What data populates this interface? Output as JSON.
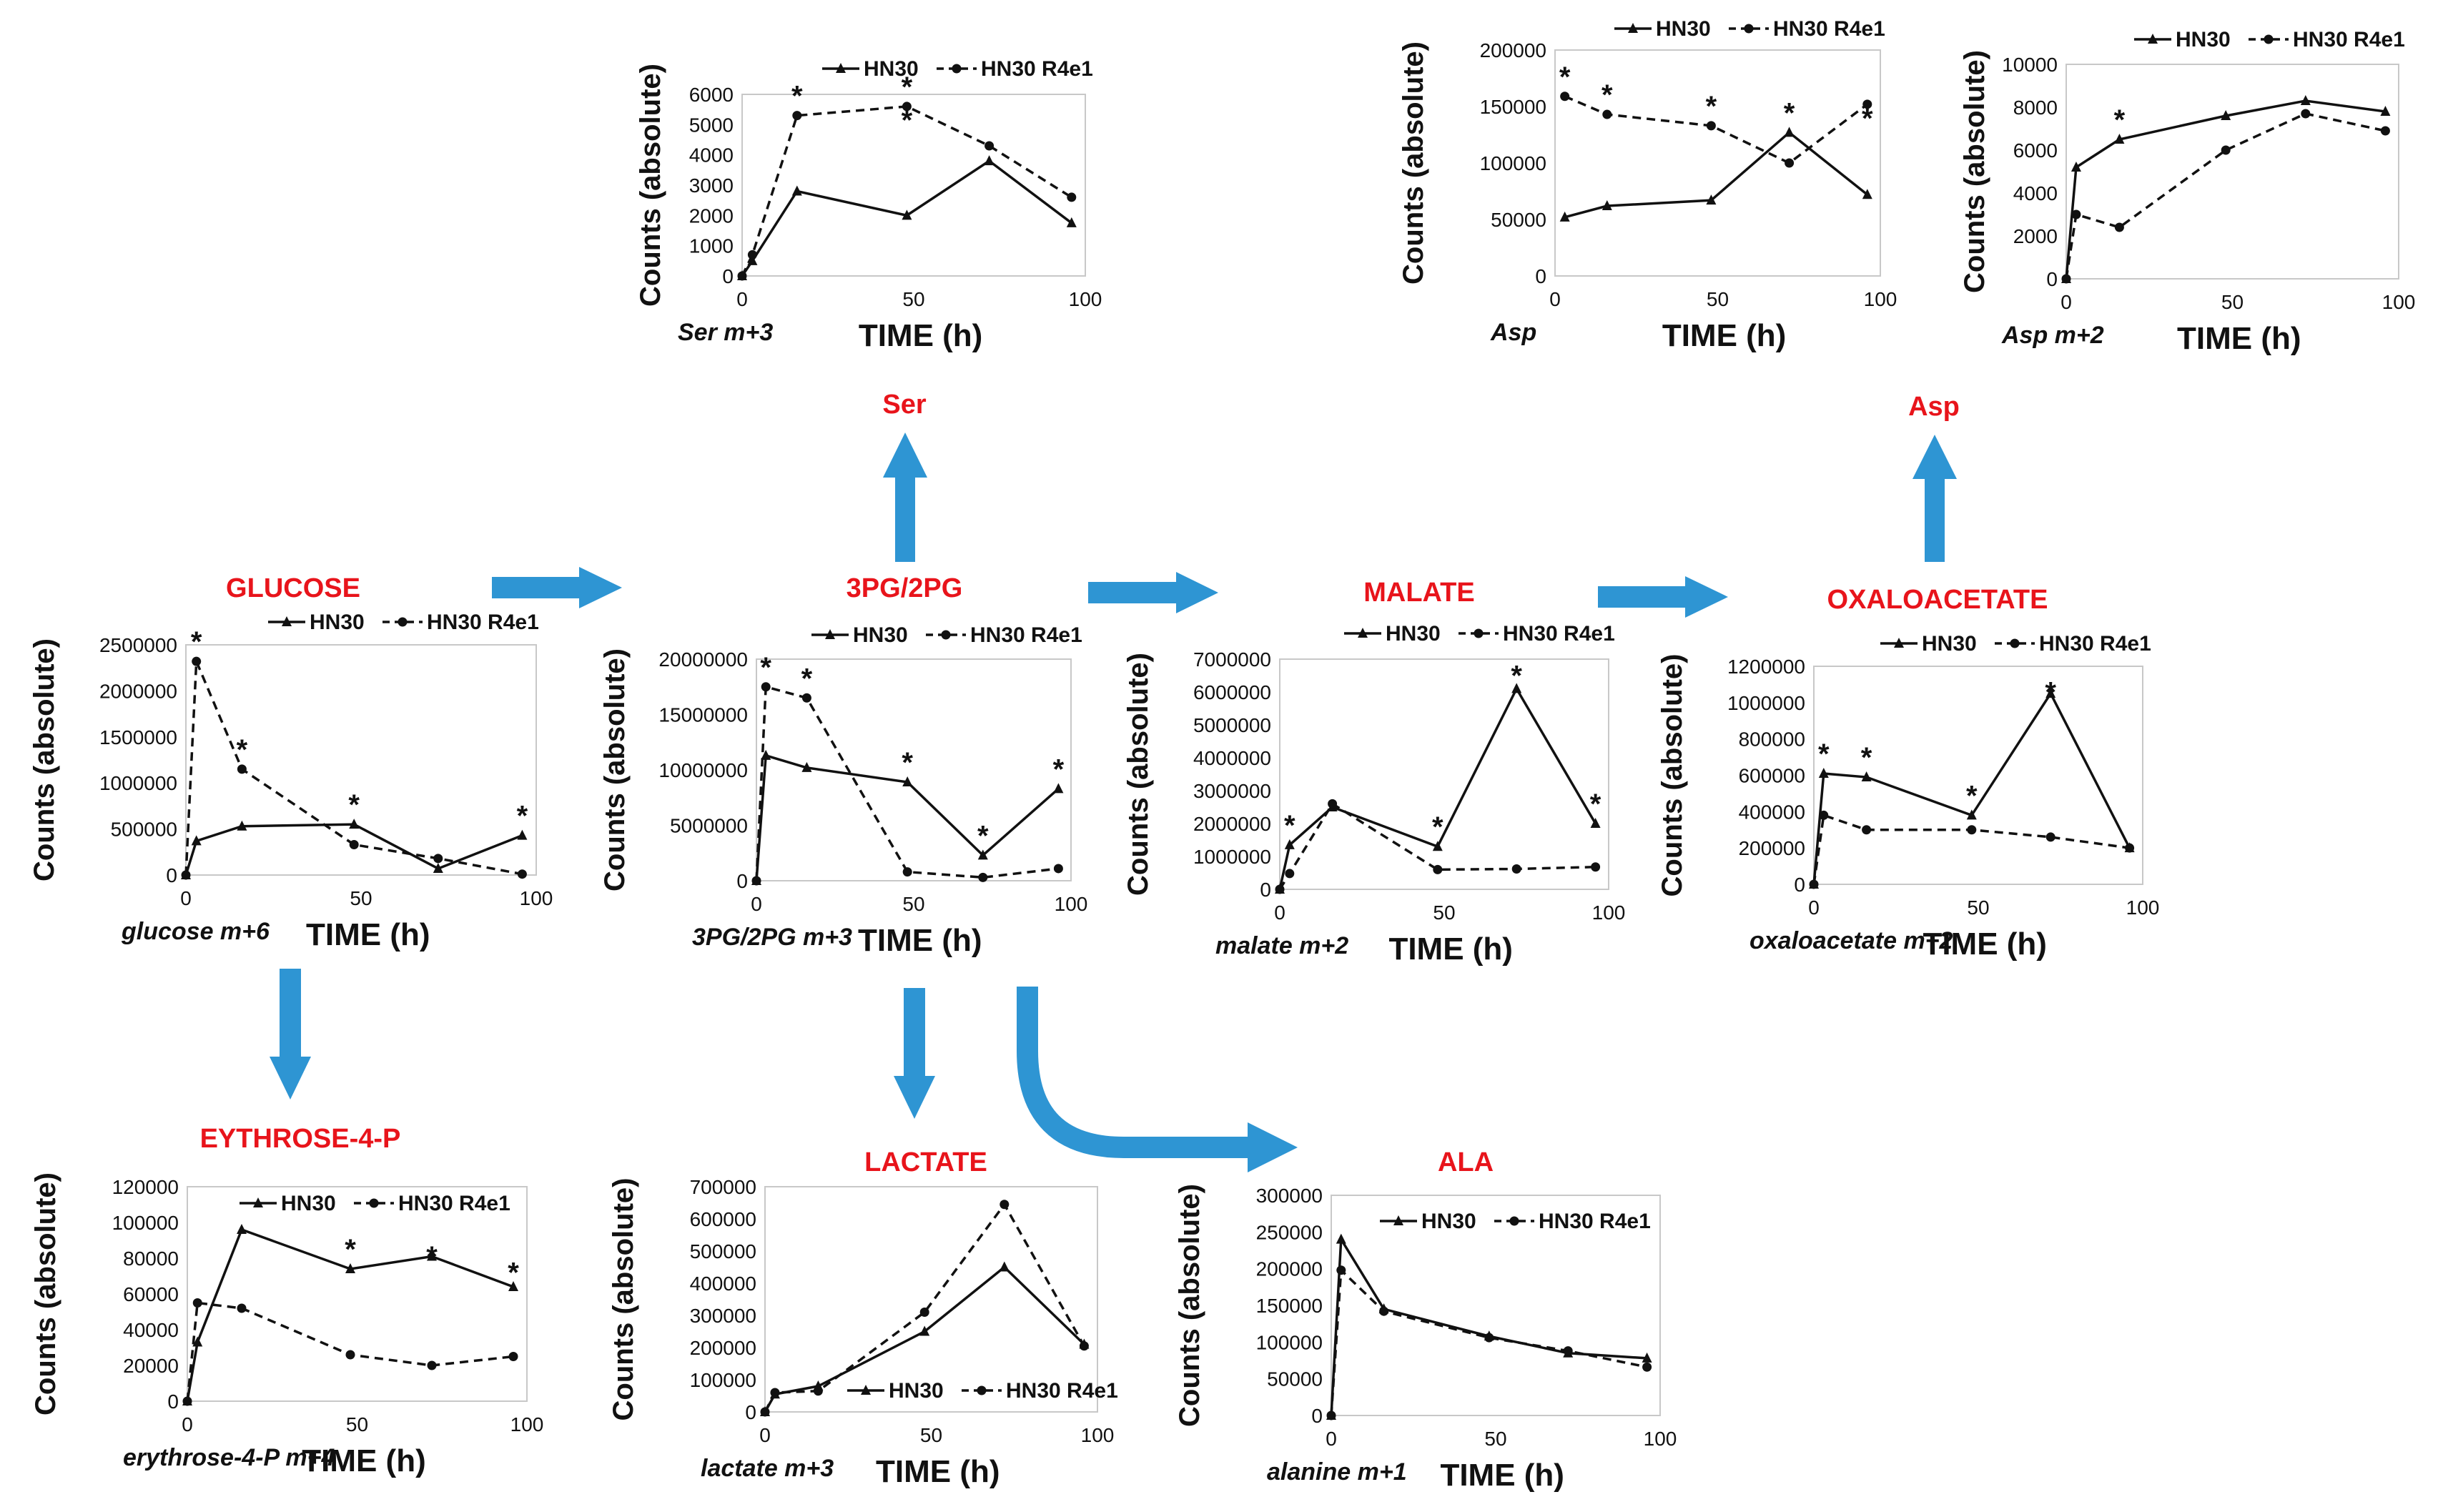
{
  "metabolites": {
    "ser": "Ser",
    "asp": "Asp",
    "glucose": "GLUCOSE",
    "pg": "3PG/2PG",
    "malate": "MALATE",
    "oxaloacetate": "OXALOACETATE",
    "erythrose": "EYTHROSE-4-P",
    "lactate": "LACTATE",
    "ala": "ALA"
  },
  "colors": {
    "metabolite_label": "#e8141b",
    "arrow": "#2e95d3",
    "line": "#111111"
  },
  "legend": {
    "series1": "HN30",
    "series2": "HN30 R4e1"
  },
  "chart_data": [
    {
      "id": "ser",
      "type": "line",
      "label": "Ser m+3",
      "xlabel": "TIME (h)",
      "ylabel": "Counts (absolute)",
      "xlim": [
        0,
        100
      ],
      "ylim": [
        0,
        6000
      ],
      "xticks": [
        0,
        50,
        100
      ],
      "yticks": [
        0,
        1000,
        2000,
        3000,
        4000,
        5000,
        6000
      ],
      "ytick_labels": [
        "0",
        "1000",
        "2000",
        "3000",
        "4000",
        "5000",
        "6000"
      ],
      "x": [
        0,
        3,
        16,
        48,
        72,
        96
      ],
      "series": [
        {
          "name": "HN30",
          "values": [
            0,
            500,
            2800,
            2000,
            3800,
            1750
          ]
        },
        {
          "name": "HN30 R4e1",
          "values": [
            0,
            700,
            5300,
            5600,
            4300,
            2600
          ]
        }
      ],
      "asterisks": [
        {
          "x": 16,
          "y": 5300
        },
        {
          "x": 48,
          "y": 5600
        },
        {
          "x": 48,
          "y": 4500
        }
      ]
    },
    {
      "id": "asp",
      "type": "line",
      "label": "Asp",
      "xlabel": "TIME (h)",
      "ylabel": "Counts (absolute)",
      "xlim": [
        0,
        100
      ],
      "ylim": [
        0,
        200000
      ],
      "xticks": [
        0,
        50,
        100
      ],
      "yticks": [
        0,
        50000,
        100000,
        150000,
        200000
      ],
      "ytick_labels": [
        "0",
        "50000",
        "100000",
        "150000",
        "200000"
      ],
      "x": [
        3,
        16,
        48,
        72,
        96
      ],
      "series": [
        {
          "name": "HN30",
          "values": [
            52000,
            62000,
            67000,
            127000,
            72000
          ]
        },
        {
          "name": "HN30 R4e1",
          "values": [
            159000,
            143000,
            133000,
            100000,
            152000
          ]
        }
      ],
      "asterisks": [
        {
          "x": 3,
          "y": 159000
        },
        {
          "x": 16,
          "y": 143000
        },
        {
          "x": 48,
          "y": 133000
        },
        {
          "x": 72,
          "y": 127000
        },
        {
          "x": 96,
          "y": 122000
        }
      ]
    },
    {
      "id": "asp2",
      "type": "line",
      "label": "Asp m+2",
      "xlabel": "TIME (h)",
      "ylabel": "Counts (absolute)",
      "xlim": [
        0,
        100
      ],
      "ylim": [
        0,
        10000
      ],
      "xticks": [
        0,
        50,
        100
      ],
      "yticks": [
        0,
        2000,
        4000,
        6000,
        8000,
        10000
      ],
      "ytick_labels": [
        "0",
        "2000",
        "4000",
        "6000",
        "8000",
        "10000"
      ],
      "x": [
        0,
        3,
        16,
        48,
        72,
        96
      ],
      "series": [
        {
          "name": "HN30",
          "values": [
            0,
            5200,
            6500,
            7600,
            8300,
            7800
          ]
        },
        {
          "name": "HN30 R4e1",
          "values": [
            0,
            3000,
            2400,
            6000,
            7700,
            6900
          ]
        }
      ],
      "asterisks": [
        {
          "x": 16,
          "y": 6500
        }
      ]
    },
    {
      "id": "glucose",
      "type": "line",
      "label": "glucose m+6",
      "xlabel": "TIME (h)",
      "ylabel": "Counts (absolute)",
      "xlim": [
        0,
        100
      ],
      "ylim": [
        0,
        2500000
      ],
      "xticks": [
        0,
        50,
        100
      ],
      "yticks": [
        0,
        500000,
        1000000,
        1500000,
        2000000,
        2500000
      ],
      "ytick_labels": [
        "0",
        "500000",
        "1000000",
        "1500000",
        "2000000",
        "2500000"
      ],
      "x": [
        0,
        3,
        16,
        48,
        72,
        96
      ],
      "series": [
        {
          "name": "HN30",
          "values": [
            0,
            370000,
            530000,
            550000,
            70000,
            430000
          ]
        },
        {
          "name": "HN30 R4e1",
          "values": [
            0,
            2320000,
            1150000,
            330000,
            180000,
            10000
          ]
        }
      ],
      "asterisks": [
        {
          "x": 3,
          "y": 2320000
        },
        {
          "x": 16,
          "y": 1150000
        },
        {
          "x": 48,
          "y": 550000
        },
        {
          "x": 96,
          "y": 430000
        }
      ]
    },
    {
      "id": "pg",
      "type": "line",
      "label": "3PG/2PG m+3",
      "xlabel": "TIME (h)",
      "ylabel": "Counts (absolute)",
      "xlim": [
        0,
        100
      ],
      "ylim": [
        0,
        20000000
      ],
      "xticks": [
        0,
        50,
        100
      ],
      "yticks": [
        0,
        5000000,
        10000000,
        15000000,
        20000000
      ],
      "ytick_labels": [
        "0",
        "5000000",
        "10000000",
        "15000000",
        "20000000"
      ],
      "x": [
        0,
        3,
        16,
        48,
        72,
        96
      ],
      "series": [
        {
          "name": "HN30",
          "values": [
            0,
            11300000,
            10200000,
            8900000,
            2300000,
            8300000
          ]
        },
        {
          "name": "HN30 R4e1",
          "values": [
            0,
            17500000,
            16500000,
            800000,
            300000,
            1100000
          ]
        }
      ],
      "asterisks": [
        {
          "x": 3,
          "y": 17500000
        },
        {
          "x": 16,
          "y": 16500000
        },
        {
          "x": 48,
          "y": 8900000
        },
        {
          "x": 72,
          "y": 2300000
        },
        {
          "x": 96,
          "y": 8300000
        }
      ]
    },
    {
      "id": "malate",
      "type": "line",
      "label": "malate m+2",
      "xlabel": "TIME (h)",
      "ylabel": "Counts (absolute)",
      "xlim": [
        0,
        100
      ],
      "ylim": [
        0,
        7000000
      ],
      "xticks": [
        0,
        50,
        100
      ],
      "yticks": [
        0,
        1000000,
        2000000,
        3000000,
        4000000,
        5000000,
        6000000,
        7000000
      ],
      "ytick_labels": [
        "0",
        "1000000",
        "2000000",
        "3000000",
        "4000000",
        "5000000",
        "6000000",
        "7000000"
      ],
      "x": [
        0,
        3,
        16,
        48,
        72,
        96
      ],
      "series": [
        {
          "name": "HN30",
          "values": [
            0,
            1350000,
            2500000,
            1300000,
            6100000,
            2000000
          ]
        },
        {
          "name": "HN30 R4e1",
          "values": [
            0,
            480000,
            2600000,
            600000,
            620000,
            680000
          ]
        }
      ],
      "asterisks": [
        {
          "x": 3,
          "y": 1350000
        },
        {
          "x": 48,
          "y": 1300000
        },
        {
          "x": 72,
          "y": 5900000
        },
        {
          "x": 96,
          "y": 2000000
        }
      ]
    },
    {
      "id": "oxaloacetate",
      "type": "line",
      "label": "oxaloacetate m+2",
      "xlabel": "TIME (h)",
      "ylabel": "Counts (absolute)",
      "xlim": [
        0,
        100
      ],
      "ylim": [
        0,
        1200000
      ],
      "xticks": [
        0,
        50,
        100
      ],
      "yticks": [
        0,
        200000,
        400000,
        600000,
        800000,
        1000000,
        1200000
      ],
      "ytick_labels": [
        "0",
        "200000",
        "400000",
        "600000",
        "800000",
        "1000000",
        "1200000"
      ],
      "x": [
        0,
        3,
        16,
        48,
        72,
        96
      ],
      "series": [
        {
          "name": "HN30",
          "values": [
            0,
            610000,
            590000,
            380000,
            1050000,
            200000
          ]
        },
        {
          "name": "HN30 R4e1",
          "values": [
            0,
            380000,
            300000,
            300000,
            260000,
            200000
          ]
        }
      ],
      "asterisks": [
        {
          "x": 3,
          "y": 610000
        },
        {
          "x": 16,
          "y": 590000
        },
        {
          "x": 48,
          "y": 380000
        },
        {
          "x": 72,
          "y": 950000
        }
      ]
    },
    {
      "id": "erythrose",
      "type": "line",
      "label": "erythrose-4-P m+4",
      "xlabel": "TIME (h)",
      "ylabel": "Counts (absolute)",
      "xlim": [
        0,
        100
      ],
      "ylim": [
        0,
        120000
      ],
      "xticks": [
        0,
        50,
        100
      ],
      "yticks": [
        0,
        20000,
        40000,
        60000,
        80000,
        100000,
        120000
      ],
      "ytick_labels": [
        "0",
        "20000",
        "40000",
        "60000",
        "80000",
        "100000",
        "120000"
      ],
      "x": [
        0,
        3,
        16,
        48,
        72,
        96
      ],
      "series": [
        {
          "name": "HN30",
          "values": [
            0,
            33000,
            96000,
            74000,
            81000,
            64000
          ]
        },
        {
          "name": "HN30 R4e1",
          "values": [
            0,
            55000,
            52000,
            26000,
            20000,
            25000
          ]
        }
      ],
      "asterisks": [
        {
          "x": 48,
          "y": 74000
        },
        {
          "x": 72,
          "y": 70000
        },
        {
          "x": 96,
          "y": 61000
        }
      ]
    },
    {
      "id": "lactate",
      "type": "line",
      "label": "lactate m+3",
      "xlabel": "TIME (h)",
      "ylabel": "Counts (absolute)",
      "xlim": [
        0,
        100
      ],
      "ylim": [
        0,
        700000
      ],
      "xticks": [
        0,
        50,
        100
      ],
      "yticks": [
        0,
        100000,
        200000,
        300000,
        400000,
        500000,
        600000,
        700000
      ],
      "ytick_labels": [
        "0",
        "100000",
        "200000",
        "300000",
        "400000",
        "500000",
        "600000",
        "700000"
      ],
      "x": [
        0,
        3,
        16,
        48,
        72,
        96
      ],
      "series": [
        {
          "name": "HN30",
          "values": [
            0,
            55000,
            80000,
            250000,
            450000,
            210000
          ]
        },
        {
          "name": "HN30 R4e1",
          "values": [
            0,
            60000,
            65000,
            310000,
            645000,
            205000
          ]
        }
      ],
      "asterisks": []
    },
    {
      "id": "ala",
      "type": "line",
      "label": "alanine m+1",
      "xlabel": "TIME (h)",
      "ylabel": "Counts (absolute)",
      "xlim": [
        0,
        100
      ],
      "ylim": [
        0,
        300000
      ],
      "xticks": [
        0,
        50,
        100
      ],
      "yticks": [
        0,
        50000,
        100000,
        150000,
        200000,
        250000,
        300000
      ],
      "ytick_labels": [
        "0",
        "50000",
        "100000",
        "150000",
        "200000",
        "250000",
        "300000"
      ],
      "x": [
        0,
        3,
        16,
        48,
        72,
        96
      ],
      "series": [
        {
          "name": "HN30",
          "values": [
            0,
            240000,
            145000,
            108000,
            85000,
            78000
          ]
        },
        {
          "name": "HN30 R4e1",
          "values": [
            0,
            198000,
            142000,
            106000,
            88000,
            66000
          ]
        }
      ],
      "asterisks": []
    }
  ]
}
